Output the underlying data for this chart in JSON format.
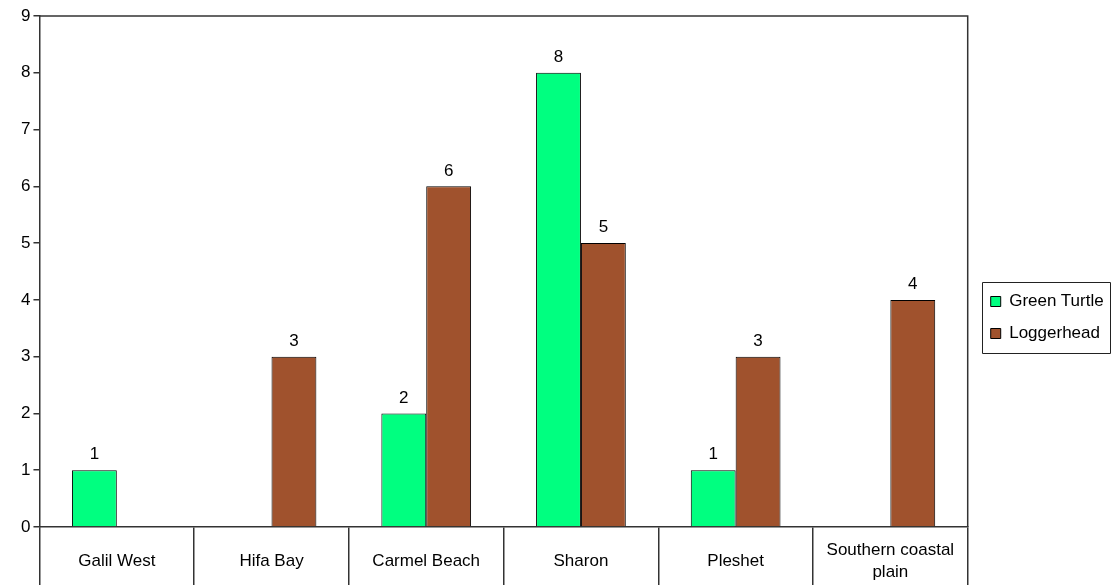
{
  "chart_data": {
    "type": "bar",
    "categories": [
      "Galil West",
      "Hifa Bay",
      "Carmel Beach",
      "Sharon",
      "Pleshet",
      "Southern coastal plain"
    ],
    "series": [
      {
        "name": "Green Turtle",
        "color": "#00ff80",
        "values": [
          1,
          null,
          2,
          8,
          1,
          null
        ]
      },
      {
        "name": "Loggerhead",
        "color": "#a0522d",
        "values": [
          null,
          3,
          6,
          5,
          3,
          4
        ]
      }
    ],
    "ylim": [
      0,
      9
    ],
    "yticks": [
      0,
      1,
      2,
      3,
      4,
      5,
      6,
      7,
      8,
      9
    ],
    "data_labels": true,
    "grid": false,
    "legend": "right"
  }
}
